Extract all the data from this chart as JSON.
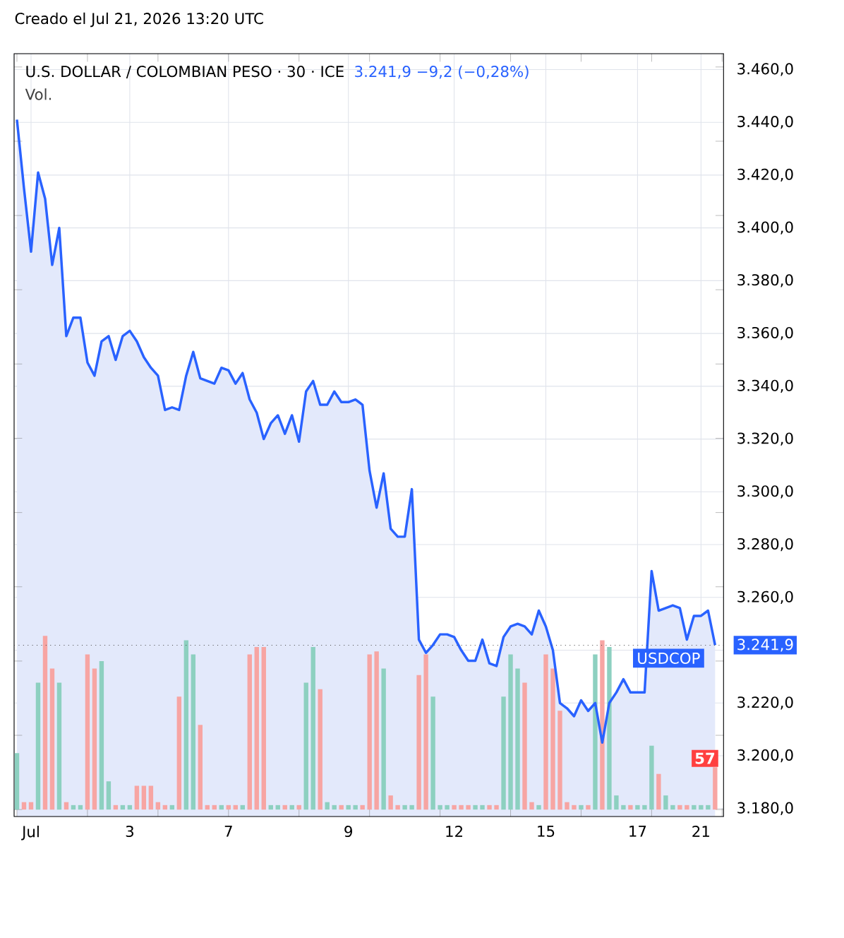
{
  "chart_data": [
    {
      "type": "area",
      "title": "U.S. DOLLAR / COLOMBIAN PESO · 30 · ICE",
      "subtitle": "3.241,9 −9,2 (−0,28%)",
      "annotations": [
        "Creado el Jul 21, 2026 13:20 UTC"
      ],
      "categories": [
        null,
        null,
        "Jul",
        null,
        null,
        null,
        null,
        null,
        null,
        null,
        null,
        null,
        null,
        null,
        null,
        null,
        "3",
        null,
        null,
        null,
        null,
        null,
        null,
        null,
        null,
        null,
        null,
        null,
        null,
        null,
        "7",
        null,
        null,
        null,
        null,
        null,
        null,
        null,
        null,
        null,
        null,
        null,
        null,
        null,
        null,
        null,
        null,
        "9",
        null,
        null,
        null,
        null,
        null,
        null,
        null,
        null,
        null,
        null,
        null,
        null,
        null,
        null,
        "12",
        null,
        null,
        null,
        null,
        null,
        null,
        null,
        null,
        null,
        null,
        null,
        null,
        "15",
        null,
        null,
        null,
        null,
        null,
        null,
        null,
        null,
        null,
        null,
        null,
        null,
        "17",
        null,
        null,
        null,
        null,
        null,
        null,
        null,
        null,
        "21",
        null,
        null
      ],
      "values": [
        3441,
        3415,
        3391,
        3421,
        3411,
        3386,
        3400,
        3359,
        3366,
        3366,
        3349,
        3344,
        3357,
        3359,
        3350,
        3359,
        3361,
        3357,
        3351,
        3347,
        3344,
        3331,
        3332,
        3331,
        3344,
        3353,
        3343,
        3342,
        3341,
        3347,
        3346,
        3341,
        3345,
        3335,
        3330,
        3320,
        3326,
        3329,
        3322,
        3329,
        3319,
        3338,
        3342,
        3333,
        3333,
        3338,
        3334,
        3334,
        3335,
        3333,
        3308,
        3294,
        3307,
        3286,
        3283,
        3283,
        3301,
        3244,
        3239,
        3242,
        3246,
        3246,
        3245,
        3240,
        3236,
        3236,
        3244,
        3235,
        3234,
        3245,
        3249,
        3250,
        3249,
        3246,
        3255,
        3249,
        3240,
        3220,
        3218,
        3215,
        3221,
        3217,
        3220,
        3205,
        3220,
        3224,
        3229,
        3224,
        3224,
        3224,
        3270,
        3255,
        3256,
        3257,
        3256,
        3244,
        3253,
        3253,
        3255,
        3241.9
      ],
      "color": "#2962ff",
      "ylim": [
        3177,
        3466
      ],
      "yticks": [
        {
          "value": 3180,
          "label": "3.180,0"
        },
        {
          "value": 3200,
          "label": "3.200,0"
        },
        {
          "value": 3220,
          "label": "3.220,0"
        },
        {
          "value": 3240,
          "label": null
        },
        {
          "value": 3241.9,
          "label": "3.241,9"
        },
        {
          "value": 3260,
          "label": "3.260,0"
        },
        {
          "value": 3280,
          "label": "3.280,0"
        },
        {
          "value": 3300,
          "label": "3.300,0"
        },
        {
          "value": 3320,
          "label": "3.320,0"
        },
        {
          "value": 3340,
          "label": "3.340,0"
        },
        {
          "value": 3360,
          "label": "3.360,0"
        },
        {
          "value": 3380,
          "label": "3.380,0"
        },
        {
          "value": 3400,
          "label": "3.400,0"
        },
        {
          "value": 3420,
          "label": "3.420,0"
        },
        {
          "value": 3440,
          "label": "3.440,0"
        },
        {
          "value": 3460,
          "label": "3.460,0"
        }
      ],
      "grid": true,
      "ref_lines": [
        {
          "axis": "y",
          "value": 3241.9,
          "label": "USDCOP",
          "line_style": "dotted"
        }
      ]
    },
    {
      "type": "bar",
      "title": "Vol.",
      "tick_labels": false,
      "categories": [
        null,
        null,
        null,
        null,
        null,
        null,
        null,
        null,
        null,
        null,
        null,
        null,
        null,
        null,
        null,
        null,
        null,
        null,
        null,
        null,
        null,
        null,
        null,
        null,
        null,
        null,
        null,
        null,
        null,
        null,
        null,
        null,
        null,
        null,
        null,
        null,
        null,
        null,
        null,
        null,
        null,
        null,
        null,
        null,
        null,
        null,
        null,
        null,
        null,
        null,
        null,
        null,
        null,
        null,
        null,
        null,
        null,
        null,
        null,
        null,
        null,
        null,
        null,
        null,
        null,
        null,
        null,
        null,
        null,
        null,
        null,
        null,
        null,
        null,
        null,
        null,
        null,
        null,
        null,
        null,
        null,
        null,
        null,
        null,
        null,
        null,
        null,
        null,
        null,
        null,
        null,
        null,
        null,
        null,
        null,
        null,
        null,
        null,
        null,
        null
      ],
      "values": [
        76,
        10,
        10,
        171,
        234,
        190,
        171,
        10,
        6,
        6,
        209,
        190,
        200,
        38,
        6,
        6,
        6,
        32,
        32,
        32,
        10,
        6,
        6,
        152,
        228,
        209,
        114,
        6,
        6,
        6,
        6,
        6,
        6,
        209,
        219,
        219,
        6,
        6,
        6,
        6,
        6,
        171,
        219,
        162,
        10,
        6,
        6,
        6,
        6,
        6,
        209,
        213,
        190,
        19,
        6,
        6,
        6,
        181,
        209,
        152,
        6,
        6,
        6,
        6,
        6,
        6,
        6,
        6,
        6,
        152,
        209,
        190,
        171,
        10,
        6,
        209,
        190,
        133,
        10,
        6,
        6,
        6,
        209,
        228,
        219,
        19,
        6,
        6,
        6,
        6,
        86,
        48,
        19,
        6,
        6,
        6,
        6,
        6,
        6,
        57
      ],
      "colors": [
        "#8dd0c0",
        "#f7a5a3",
        "#f7a5a3",
        "#8dd0c0",
        "#f7a5a3",
        "#f7a5a3",
        "#8dd0c0",
        "#f7a5a3",
        "#8dd0c0",
        "#8dd0c0",
        "#f7a5a3",
        "#f7a5a3",
        "#8dd0c0",
        "#8dd0c0",
        "#f7a5a3",
        "#8dd0c0",
        "#8dd0c0",
        "#f7a5a3",
        "#f7a5a3",
        "#f7a5a3",
        "#f7a5a3",
        "#f7a5a3",
        "#8dd0c0",
        "#f7a5a3",
        "#8dd0c0",
        "#8dd0c0",
        "#f7a5a3",
        "#f7a5a3",
        "#f7a5a3",
        "#8dd0c0",
        "#f7a5a3",
        "#f7a5a3",
        "#8dd0c0",
        "#f7a5a3",
        "#f7a5a3",
        "#f7a5a3",
        "#8dd0c0",
        "#8dd0c0",
        "#f7a5a3",
        "#8dd0c0",
        "#f7a5a3",
        "#8dd0c0",
        "#8dd0c0",
        "#f7a5a3",
        "#8dd0c0",
        "#8dd0c0",
        "#f7a5a3",
        "#8dd0c0",
        "#8dd0c0",
        "#f7a5a3",
        "#f7a5a3",
        "#f7a5a3",
        "#8dd0c0",
        "#f7a5a3",
        "#f7a5a3",
        "#8dd0c0",
        "#8dd0c0",
        "#f7a5a3",
        "#f7a5a3",
        "#8dd0c0",
        "#8dd0c0",
        "#8dd0c0",
        "#f7a5a3",
        "#f7a5a3",
        "#f7a5a3",
        "#8dd0c0",
        "#8dd0c0",
        "#f7a5a3",
        "#f7a5a3",
        "#8dd0c0",
        "#8dd0c0",
        "#8dd0c0",
        "#f7a5a3",
        "#f7a5a3",
        "#8dd0c0",
        "#f7a5a3",
        "#f7a5a3",
        "#f7a5a3",
        "#f7a5a3",
        "#f7a5a3",
        "#8dd0c0",
        "#f7a5a3",
        "#8dd0c0",
        "#f7a5a3",
        "#8dd0c0",
        "#8dd0c0",
        "#8dd0c0",
        "#f7a5a3",
        "#8dd0c0",
        "#8dd0c0",
        "#8dd0c0",
        "#f7a5a3",
        "#8dd0c0",
        "#8dd0c0",
        "#f7a5a3",
        "#f7a5a3",
        "#8dd0c0",
        "#8dd0c0",
        "#8dd0c0",
        "#f7a5a3"
      ],
      "value_labels": [
        null,
        null,
        null,
        null,
        null,
        null,
        null,
        null,
        null,
        null,
        null,
        null,
        null,
        null,
        null,
        null,
        null,
        null,
        null,
        null,
        null,
        null,
        null,
        null,
        null,
        null,
        null,
        null,
        null,
        null,
        null,
        null,
        null,
        null,
        null,
        null,
        null,
        null,
        null,
        null,
        null,
        null,
        null,
        null,
        null,
        null,
        null,
        null,
        null,
        null,
        null,
        null,
        null,
        null,
        null,
        null,
        null,
        null,
        null,
        null,
        null,
        null,
        null,
        null,
        null,
        null,
        null,
        null,
        null,
        null,
        null,
        null,
        null,
        null,
        null,
        null,
        null,
        null,
        null,
        null,
        null,
        null,
        null,
        null,
        null,
        null,
        null,
        null,
        null,
        null,
        null,
        null,
        null,
        null,
        null,
        null,
        null,
        null,
        null,
        "57"
      ]
    }
  ]
}
